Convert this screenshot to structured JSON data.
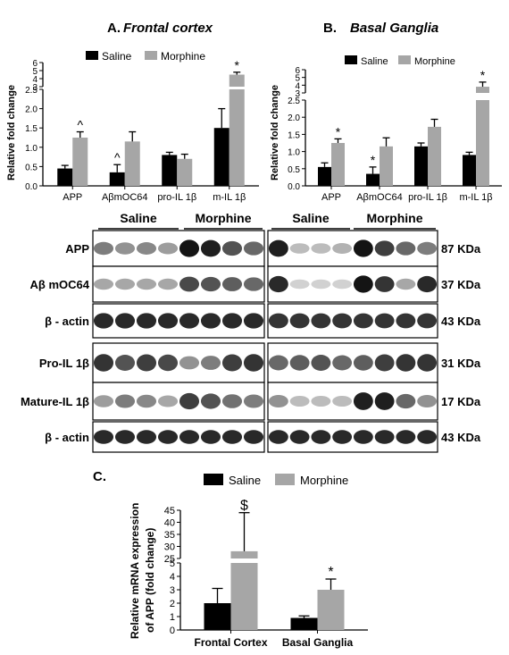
{
  "colors": {
    "saline": "#000000",
    "morphine": "#a6a6a6",
    "blot_bg": "#ffffff",
    "band": "#1a1a1a",
    "text": "#000000"
  },
  "legend": {
    "saline": "Saline",
    "morphine": "Morphine"
  },
  "western": {
    "group_labels": [
      "Saline",
      "Morphine"
    ],
    "row_labels": [
      "APP",
      "Aβ mOC64",
      "β - actin",
      "Pro-IL 1β",
      "Mature-IL 1β",
      "β - actin"
    ],
    "kda_labels": [
      "87 KDa",
      "37 KDa",
      "43 KDa",
      "31 KDa",
      "17 KDa",
      "43 KDa"
    ]
  },
  "chart_data": [
    {
      "type": "bar",
      "panel": "A.",
      "title": "Frontal cortex",
      "ylabel": "Relative fold change",
      "categories": [
        "APP",
        "AβmOC64",
        "pro-IL 1β",
        "m-IL 1β"
      ],
      "series": [
        {
          "name": "Saline",
          "values": [
            0.45,
            0.35,
            0.8,
            1.5
          ],
          "errors": [
            0.08,
            0.2,
            0.07,
            0.5
          ]
        },
        {
          "name": "Morphine",
          "values": [
            1.25,
            1.15,
            0.7,
            4.5
          ],
          "errors": [
            0.15,
            0.25,
            0.12,
            0.3
          ]
        }
      ],
      "annotations": [
        "",
        "^",
        "^",
        "",
        "",
        "",
        "",
        "*"
      ],
      "yticks_lower": [
        "0.0",
        "0.5",
        "1.0",
        "1.5",
        "2.0",
        "2.5"
      ],
      "yticks_upper": [
        "3",
        "4",
        "5",
        "6"
      ],
      "ylim_lower": [
        0,
        2.5
      ],
      "ylim_upper": [
        3,
        6
      ]
    },
    {
      "type": "bar",
      "panel": "B.",
      "title": "Basal Ganglia",
      "ylabel": "Relative fold change",
      "categories": [
        "APP",
        "AβmOC64",
        "pro-IL 1β",
        "m-IL 1β"
      ],
      "series": [
        {
          "name": "Saline",
          "values": [
            0.55,
            0.35,
            1.15,
            0.9
          ],
          "errors": [
            0.12,
            0.2,
            0.1,
            0.08
          ]
        },
        {
          "name": "Morphine",
          "values": [
            1.25,
            1.15,
            1.72,
            3.8
          ],
          "errors": [
            0.12,
            0.25,
            0.22,
            0.6
          ]
        }
      ],
      "annotations": [
        "",
        "*",
        "*",
        "",
        "",
        "",
        "",
        "*"
      ],
      "yticks_lower": [
        "0.0",
        "0.5",
        "1.0",
        "1.5",
        "2.0",
        "2.5"
      ],
      "yticks_upper": [
        "3",
        "4",
        "5",
        "6"
      ],
      "ylim_lower": [
        0,
        2.5
      ],
      "ylim_upper": [
        3,
        6
      ]
    },
    {
      "type": "bar",
      "panel": "C.",
      "title": "",
      "ylabel": "Relative mRNA expression of APP (fold change)",
      "categories": [
        "Frontal Cortex",
        "Basal Ganglia"
      ],
      "series": [
        {
          "name": "Saline",
          "values": [
            2.0,
            0.9
          ],
          "errors": [
            1.1,
            0.15
          ]
        },
        {
          "name": "Morphine",
          "values": [
            28,
            3.0
          ],
          "errors": [
            16,
            0.8
          ]
        }
      ],
      "annotations": [
        "",
        "$",
        "",
        "*"
      ],
      "yticks_lower": [
        "0",
        "1",
        "2",
        "3",
        "4",
        "5"
      ],
      "yticks_upper": [
        "25",
        "30",
        "35",
        "40",
        "45"
      ],
      "ylim_lower": [
        0,
        5
      ],
      "ylim_upper": [
        25,
        45
      ]
    }
  ]
}
